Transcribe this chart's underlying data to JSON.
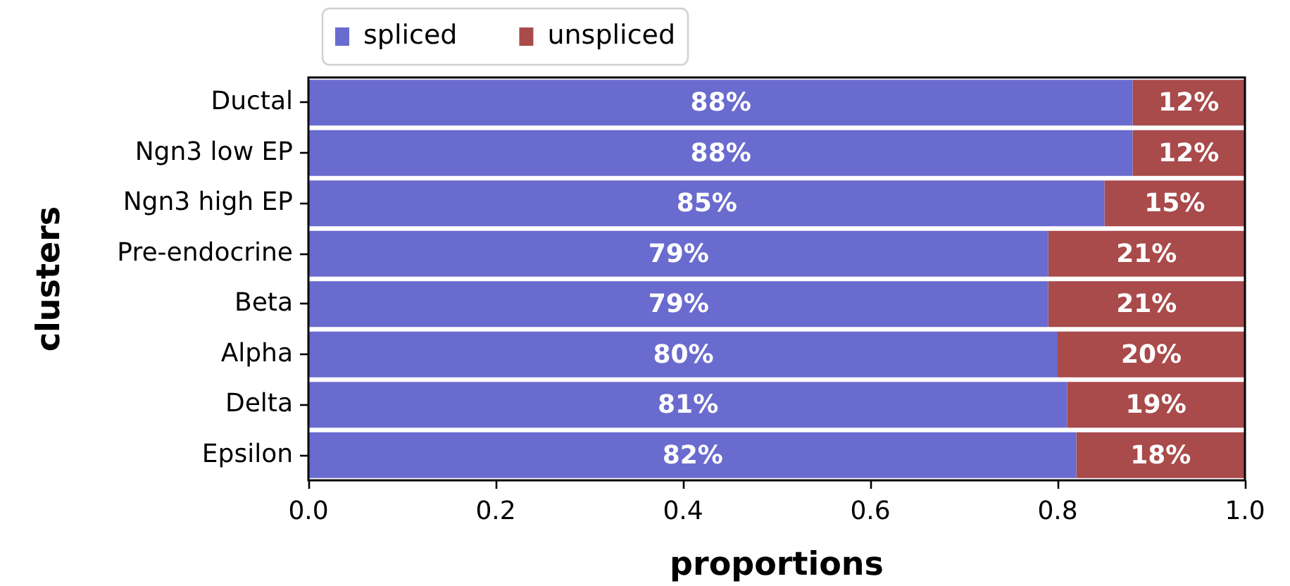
{
  "chart_data": {
    "type": "bar",
    "orientation": "horizontal",
    "stacked": true,
    "xlabel": "proportions",
    "ylabel": "clusters",
    "legend": "top left",
    "grid": false,
    "categories": [
      "Ductal",
      "Ngn3 low EP",
      "Ngn3 high EP",
      "Pre-endocrine",
      "Beta",
      "Alpha",
      "Delta",
      "Epsilon"
    ],
    "series": [
      {
        "name": "spliced",
        "color": "#6a6bcf",
        "values": [
          0.88,
          0.88,
          0.85,
          0.79,
          0.79,
          0.8,
          0.81,
          0.82
        ],
        "value_labels": [
          "88%",
          "88%",
          "85%",
          "79%",
          "79%",
          "80%",
          "81%",
          "82%"
        ]
      },
      {
        "name": "unspliced",
        "color": "#a94a4b",
        "values": [
          0.12,
          0.12,
          0.15,
          0.21,
          0.21,
          0.2,
          0.19,
          0.18
        ],
        "value_labels": [
          "12%",
          "12%",
          "15%",
          "21%",
          "21%",
          "20%",
          "19%",
          "18%"
        ]
      }
    ],
    "xlim": [
      0,
      1
    ],
    "xticks": [
      {
        "value": 0,
        "label": "0.0"
      },
      0.2,
      0.4,
      0.6,
      0.8,
      {
        "value": 1,
        "label": "1.0"
      }
    ]
  }
}
